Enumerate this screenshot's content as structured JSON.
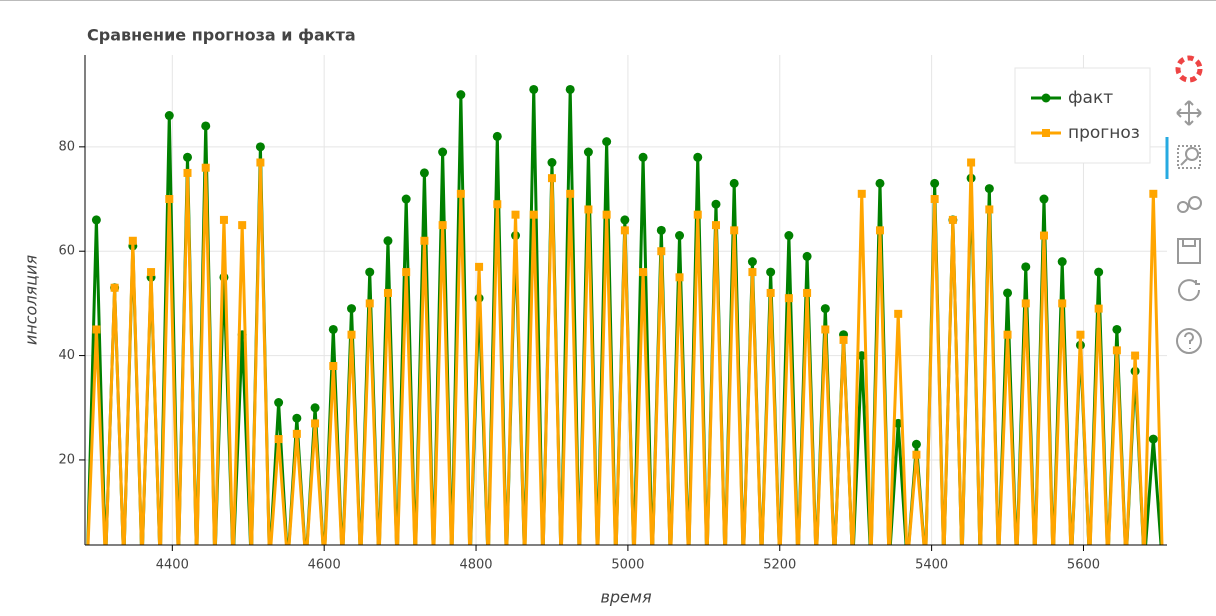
{
  "chart_data": {
    "type": "line",
    "title": "Сравнение прогноза и факта",
    "x_label": "время",
    "y_label": "инсоляция",
    "x": [
      4288,
      4300,
      4312,
      4324,
      4336,
      4348,
      4360,
      4372,
      4384,
      4396,
      4408,
      4420,
      4432,
      4444,
      4456,
      4468,
      4480,
      4492,
      4504,
      4516,
      4528,
      4540,
      4552,
      4564,
      4576,
      4588,
      4600,
      4612,
      4624,
      4636,
      4648,
      4660,
      4672,
      4684,
      4696,
      4708,
      4720,
      4732,
      4744,
      4756,
      4768,
      4780,
      4792,
      4804,
      4816,
      4828,
      4840,
      4852,
      4864,
      4876,
      4888,
      4900,
      4912,
      4924,
      4936,
      4948,
      4960,
      4972,
      4984,
      4996,
      5008,
      5020,
      5032,
      5044,
      5056,
      5068,
      5080,
      5092,
      5104,
      5116,
      5128,
      5140,
      5152,
      5164,
      5176,
      5188,
      5200,
      5212,
      5224,
      5236,
      5248,
      5260,
      5272,
      5284,
      5296,
      5308,
      5320,
      5332,
      5344,
      5356,
      5368,
      5380,
      5392,
      5404,
      5416,
      5428,
      5440,
      5452,
      5464,
      5476,
      5488,
      5500,
      5512,
      5524,
      5536,
      5548,
      5560,
      5572,
      5584,
      5596,
      5608,
      5620,
      5632,
      5644,
      5656,
      5668,
      5680,
      5692,
      5704
    ],
    "series": [
      {
        "name": "факт",
        "color": "#008000",
        "marker": "circle",
        "values": [
          0,
          66,
          0,
          53,
          0,
          61,
          0,
          55,
          0,
          86,
          0,
          78,
          0,
          84,
          0,
          55,
          0,
          44,
          0,
          80,
          0,
          31,
          0,
          28,
          0,
          30,
          0,
          45,
          0,
          49,
          0,
          56,
          0,
          62,
          0,
          70,
          0,
          75,
          0,
          79,
          0,
          90,
          0,
          51,
          0,
          82,
          0,
          63,
          0,
          91,
          0,
          77,
          0,
          91,
          0,
          79,
          0,
          81,
          0,
          66,
          0,
          78,
          0,
          64,
          0,
          63,
          0,
          78,
          0,
          69,
          0,
          73,
          0,
          58,
          0,
          56,
          0,
          63,
          0,
          59,
          0,
          49,
          0,
          44,
          0,
          40,
          0,
          73,
          0,
          27,
          0,
          23,
          0,
          73,
          0,
          66,
          0,
          74,
          0,
          72,
          0,
          52,
          0,
          57,
          0,
          70,
          0,
          58,
          0,
          42,
          0,
          56,
          0,
          45,
          0,
          37,
          0,
          24,
          0
        ]
      },
      {
        "name": "прогноз",
        "color": "#ffa500",
        "marker": "square",
        "values": [
          0,
          45,
          0,
          53,
          0,
          62,
          0,
          56,
          0,
          70,
          0,
          75,
          0,
          76,
          0,
          66,
          0,
          65,
          0,
          77,
          0,
          24,
          0,
          25,
          0,
          27,
          0,
          38,
          0,
          44,
          0,
          50,
          0,
          52,
          0,
          56,
          0,
          62,
          0,
          65,
          0,
          71,
          0,
          57,
          0,
          69,
          0,
          67,
          0,
          67,
          0,
          74,
          0,
          71,
          0,
          68,
          0,
          67,
          0,
          64,
          0,
          56,
          0,
          60,
          0,
          55,
          0,
          67,
          0,
          65,
          0,
          64,
          0,
          56,
          0,
          52,
          0,
          51,
          0,
          52,
          0,
          45,
          0,
          43,
          0,
          71,
          0,
          64,
          0,
          48,
          0,
          21,
          0,
          70,
          0,
          66,
          0,
          77,
          0,
          68,
          0,
          44,
          0,
          50,
          0,
          63,
          0,
          50,
          0,
          44,
          0,
          49,
          0,
          41,
          0,
          40,
          0,
          71,
          0
        ]
      }
    ],
    "xlim": [
      4285,
      5710
    ],
    "ylim": [
      3.7,
      97.6
    ],
    "xticks": [
      4400,
      4600,
      4800,
      5000,
      5200,
      5400,
      5600
    ],
    "yticks": [
      20,
      40,
      60,
      80
    ],
    "grid": true,
    "legend": "top_right"
  }
}
